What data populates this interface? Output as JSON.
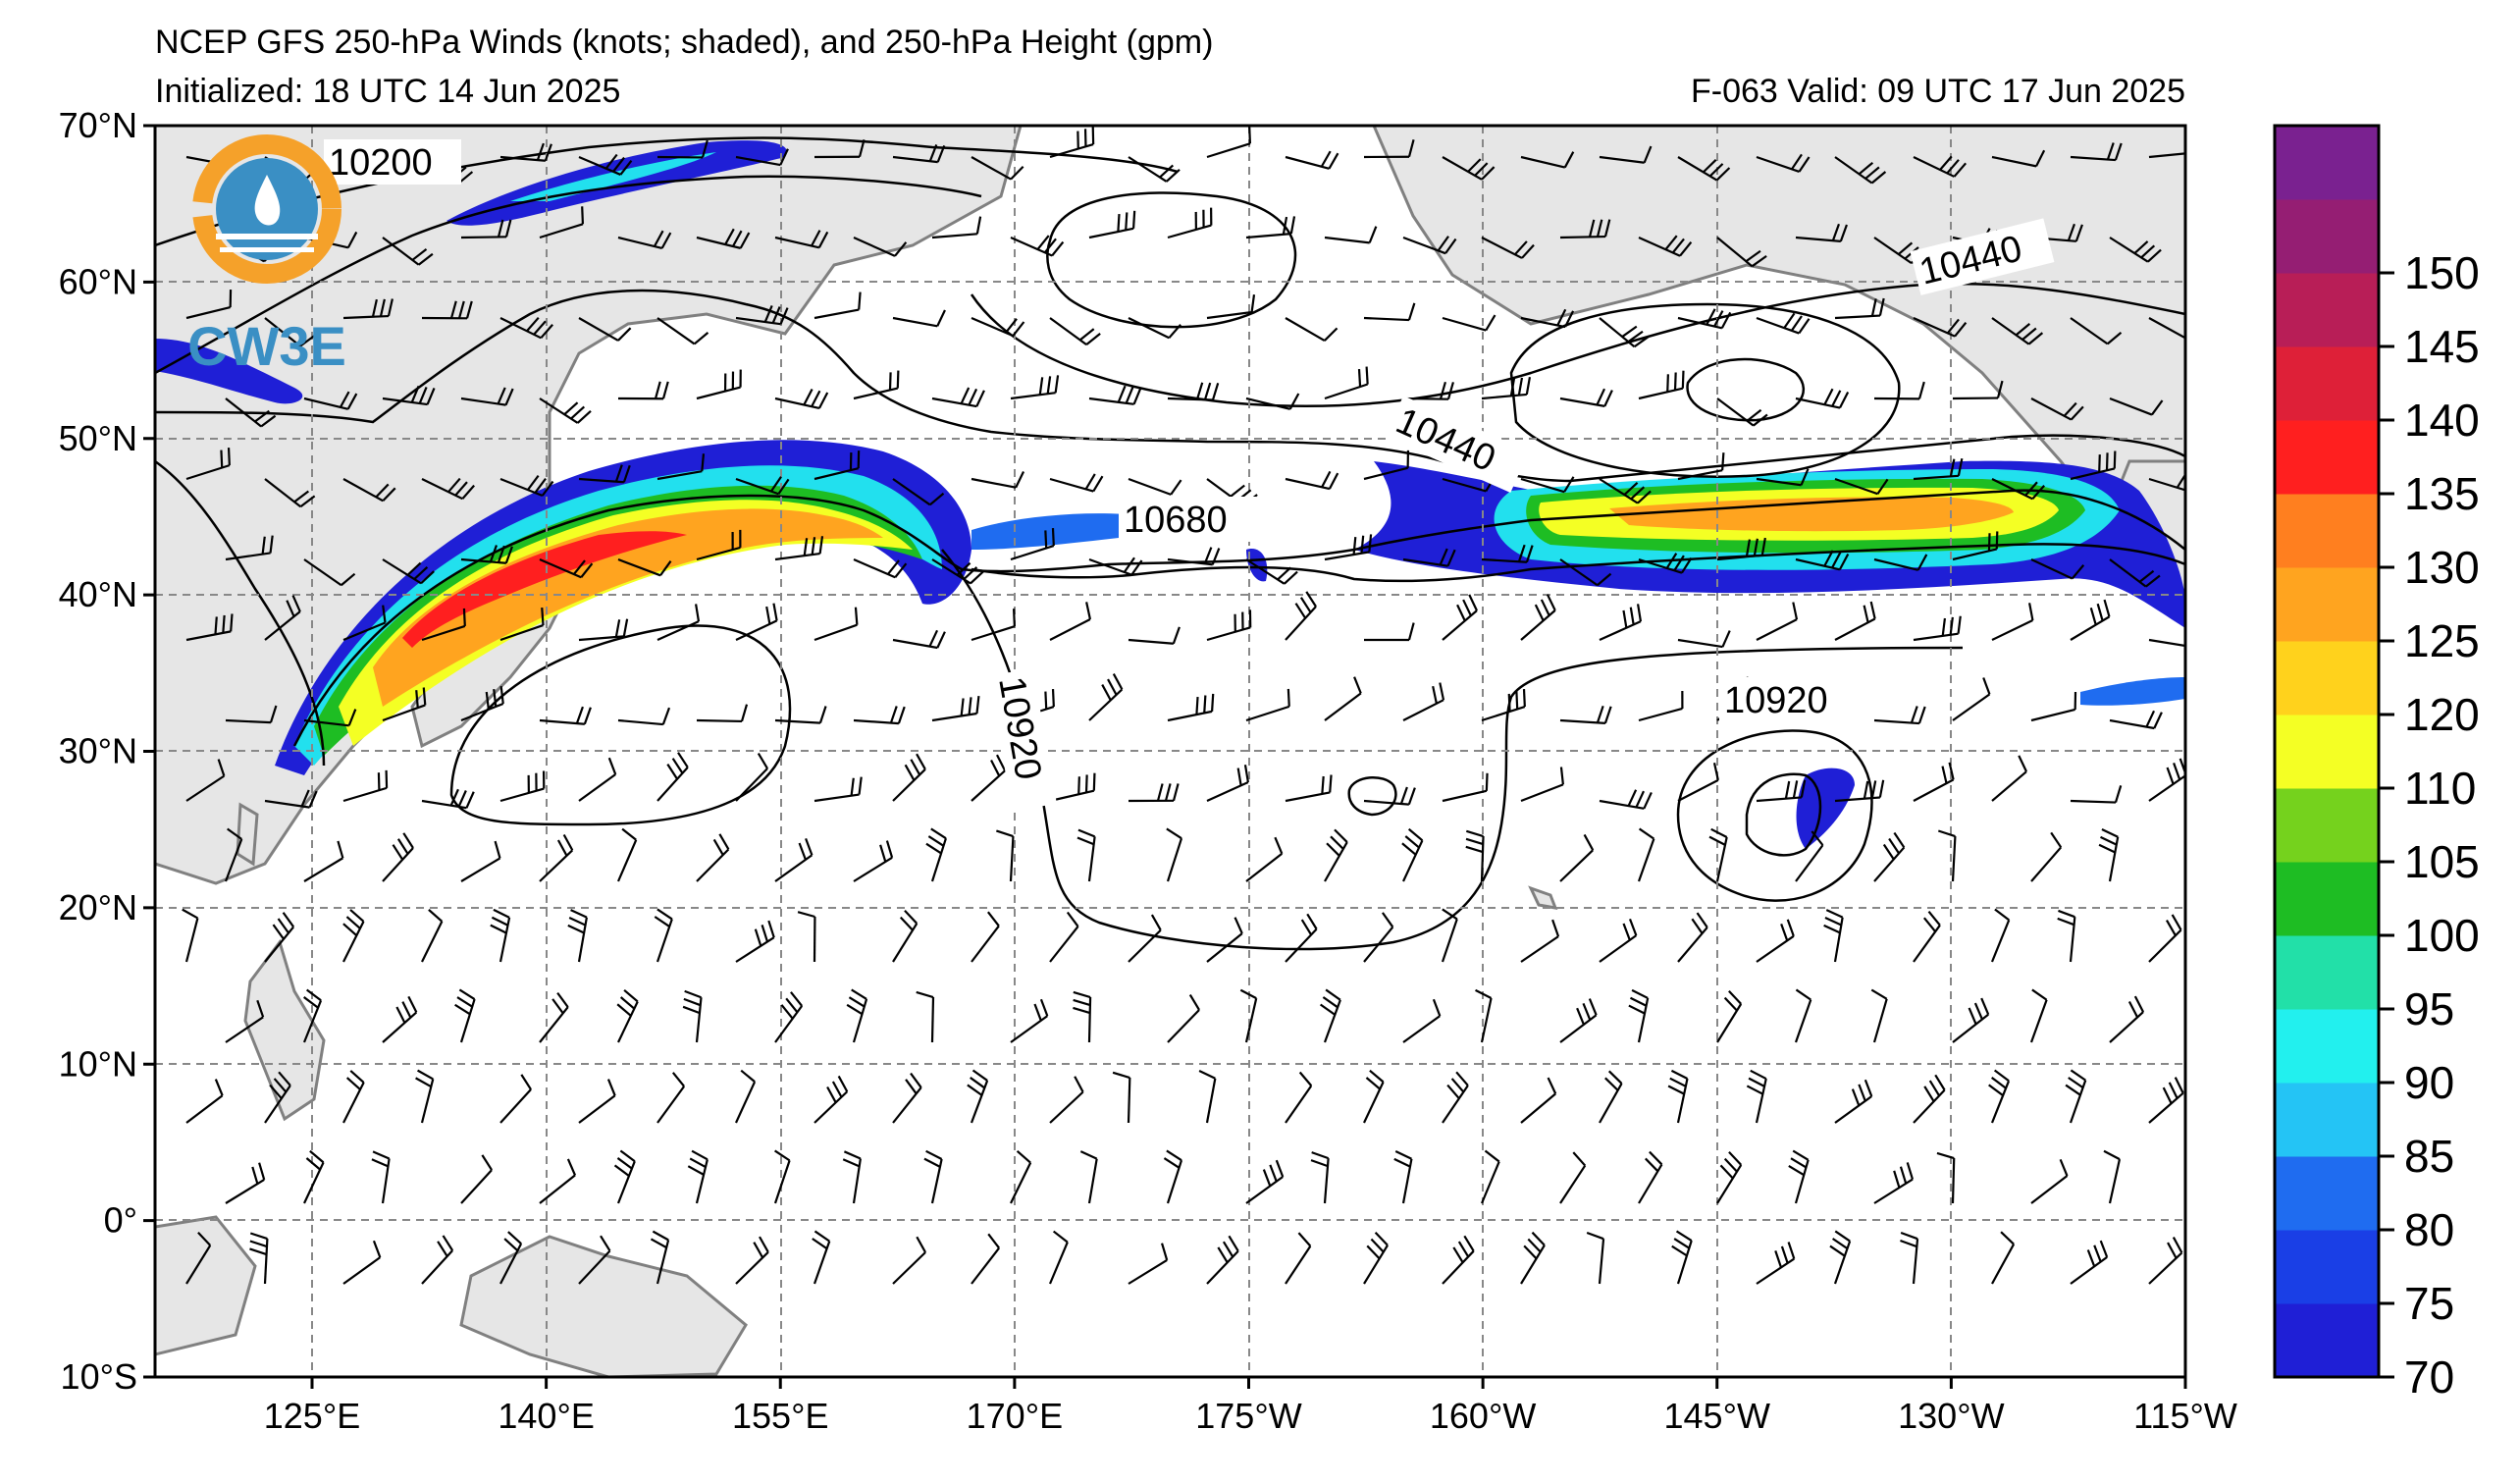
{
  "title": {
    "line1": "NCEP GFS 250-hPa Winds (knots; shaded), and 250-hPa Height (gpm)",
    "initialized": "Initialized: 18 UTC 14 Jun 2025",
    "valid": "F-063  Valid: 09 UTC 17 Jun 2025"
  },
  "logo": {
    "text": "CW3E"
  },
  "axes": {
    "lat_labels": [
      "70°N",
      "60°N",
      "50°N",
      "40°N",
      "30°N",
      "20°N",
      "10°N",
      "0°",
      "10°S"
    ],
    "lon_labels": [
      "125°E",
      "140°E",
      "155°E",
      "170°E",
      "175°W",
      "160°W",
      "145°W",
      "130°W",
      "115°W"
    ]
  },
  "contour_labels": [
    "10200",
    "10440",
    "10440",
    "10680",
    "10920",
    "10920"
  ],
  "colorbar": {
    "tick_labels": [
      "70",
      "75",
      "80",
      "85",
      "90",
      "95",
      "100",
      "105",
      "110",
      "120",
      "125",
      "130",
      "135",
      "140",
      "145",
      "150"
    ],
    "colors": [
      "#1f1fd6",
      "#1a3fe6",
      "#1f6cf0",
      "#24c4f5",
      "#22f0ee",
      "#22e0a8",
      "#1ebd23",
      "#75d21d",
      "#f4ff24",
      "#ffd21c",
      "#ffa41f",
      "#ff7f1f",
      "#ff1f1f",
      "#de2038",
      "#b81e57",
      "#951e73",
      "#7a2190"
    ]
  }
}
